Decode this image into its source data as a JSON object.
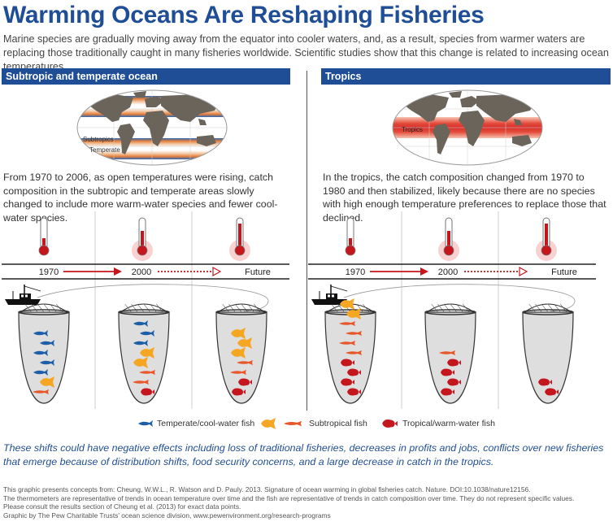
{
  "title": "Warming Oceans Are Reshaping Fisheries",
  "intro": "Marine species are gradually moving away from the equator into cooler waters, and, as a result, species from warmer waters are replacing those traditionally caught in many fisheries worldwide. Scientific studies show that this change is related to increasing ocean temperatures.",
  "left": {
    "header": "Subtropic and temperate ocean",
    "map_labels": [
      "Subtropics",
      "Temperate"
    ],
    "description": "From 1970 to 2006, as open temperatures were rising, catch composition in the subtropic and temperate areas slowly changed to include more warm-water species and fewer cool-water species.",
    "timeline": [
      "1970",
      "2000",
      "Future"
    ],
    "thermometer_levels": [
      0.3,
      0.6,
      0.9
    ],
    "nets": [
      {
        "cool": 5,
        "subtropical": 1,
        "orange": 1,
        "tropical": 0
      },
      {
        "cool": 3,
        "subtropical": 2,
        "orange": 2,
        "tropical": 1
      },
      {
        "cool": 0,
        "subtropical": 2,
        "orange": 3,
        "tropical": 2
      }
    ]
  },
  "right": {
    "header": "Tropics",
    "map_labels": [
      "Tropics"
    ],
    "description": "In the tropics, the catch composition changed from 1970 to 1980 and then stabilized, likely because there are no species with high enough temperature preferences to replace those that declined.",
    "timeline": [
      "1970",
      "2000",
      "Future"
    ],
    "thermometer_levels": [
      0.3,
      0.6,
      0.9
    ],
    "nets": [
      {
        "cool": 0,
        "subtropical": 4,
        "orange": 2,
        "tropical": 4
      },
      {
        "cool": 0,
        "subtropical": 1,
        "orange": 0,
        "tropical": 4
      },
      {
        "cool": 0,
        "subtropical": 0,
        "orange": 0,
        "tropical": 2
      }
    ]
  },
  "legend": {
    "cool": "Temperate/cool-water fish",
    "subtropical": "Subtropical fish",
    "tropical": "Tropical/warm-water fish"
  },
  "colors": {
    "navy": "#1f4e96",
    "cool_fish": "#1d5ea8",
    "orange_fish": "#f5a623",
    "subtropical_fish": "#e8572a",
    "tropical_fish": "#c4161c",
    "thermo_red": "#c4161c"
  },
  "impact": "These shifts could have negative effects including loss of traditional fisheries, decreases in profits and jobs, conflicts over new fisheries that emerge because of distribution shifts, food security concerns, and a large decrease in catch in the tropics.",
  "footnotes": [
    "This graphic presents concepts from: Cheung, W.W.L., R. Watson and D. Pauly. 2013. Signature of ocean warming in global fisheries catch. Nature. DOI:10.1038/nature12156.",
    "The thermometers are representative of trends in ocean temperature over time and the fish are representative of trends in catch composition over time. They do not represent specific values.",
    "Please consult the results section of Cheung et al. (2013) for exact data points.",
    "Graphic by The Pew Charitable Trusts' ocean science division, www.pewenvironment.org/research-programs"
  ]
}
